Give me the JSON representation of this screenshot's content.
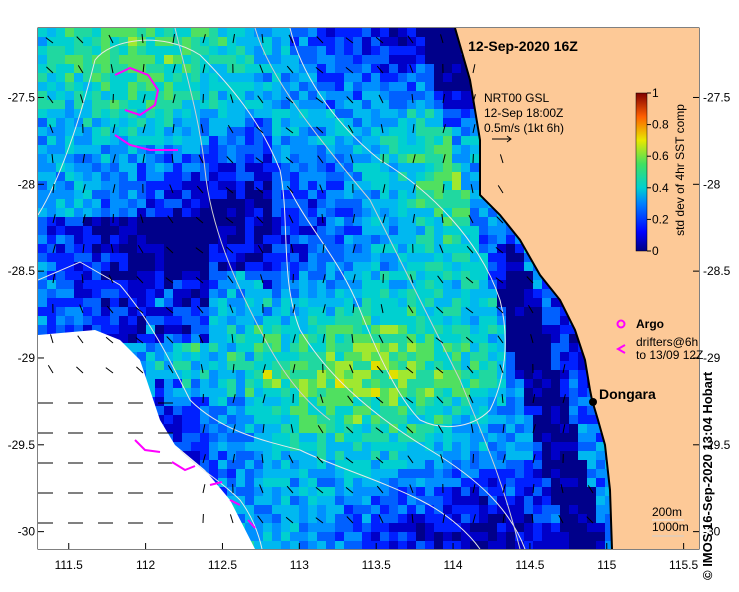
{
  "map": {
    "title": "12-Sep-2020 16Z",
    "lon_ticks": [
      "111.5",
      "112",
      "112.5",
      "113",
      "113.5",
      "114",
      "114.5",
      "115",
      "115.5"
    ],
    "lat_ticks": [
      "-27.5",
      "-28",
      "-28.5",
      "-29",
      "-29.5",
      "-30"
    ],
    "lon_range": [
      111.3,
      115.6
    ],
    "lat_range": [
      -30.1,
      -27.1
    ],
    "current_info": {
      "line1": "NRT00 GSL",
      "line2": "12-Sep 18:00Z",
      "line3": "0.5m/s (1kt 6h)"
    },
    "colorbar": {
      "label": "std dev of 4hr SST comp",
      "ticks": [
        "1",
        "0.8",
        "0.6",
        "0.4",
        "0.2",
        "0"
      ]
    },
    "legend": {
      "argo_label": "Argo",
      "drifters_label_line1": "drifters@6h",
      "drifters_label_line2": "to 13/09 12Z"
    },
    "place": {
      "name": "Dongara",
      "lon": 114.93,
      "lat": -29.27
    },
    "depth_labels": [
      "200m",
      "1000m"
    ],
    "credit": "© IMOS 16-Sep-2020 13:04 Hobart",
    "colors": {
      "land": "#fdc997",
      "coast": "#000000",
      "argo": "#ff00ff",
      "drifter": "#ff00ff"
    }
  }
}
